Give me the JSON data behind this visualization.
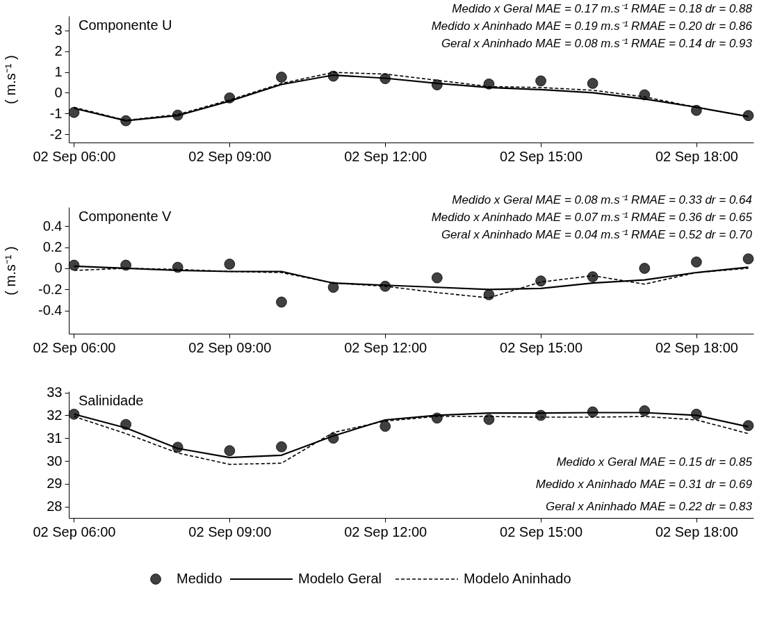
{
  "chart_data": [
    {
      "type": "line",
      "title": "Componente U",
      "ylabel": "( m.s⁻¹ )",
      "categories": [
        "02 Sep 06:00",
        null,
        null,
        "02 Sep 09:00",
        null,
        null,
        "02 Sep 12:00",
        null,
        null,
        "02 Sep 15:00",
        null,
        null,
        "02 Sep 18:00",
        null
      ],
      "ylim": [
        -2.4,
        3.7
      ],
      "yticks": [
        -2,
        -1,
        0,
        1,
        2,
        3
      ],
      "grid": false,
      "legend": false,
      "annotations": [
        "Medido x Geral   MAE = 0.17 m.s⁻¹   RMAE = 0.18   dr = 0.88",
        "Medido x Aninhado   MAE = 0.19 m.s⁻¹   RMAE = 0.20   dr = 0.86",
        "Geral x Aninhado   MAE = 0.08 m.s⁻¹   RMAE = 0.14   dr = 0.93"
      ],
      "series": [
        {
          "type": "scatter",
          "marker": "circle",
          "color": "#404040",
          "values": [
            -0.95,
            -1.35,
            -1.08,
            -0.25,
            0.75,
            0.8,
            0.68,
            0.38,
            0.42,
            0.57,
            0.45,
            -0.1,
            -0.85,
            -1.1
          ]
        },
        {
          "color": "#000000",
          "line_style": "solid",
          "values": [
            -0.75,
            -1.35,
            -1.1,
            -0.4,
            0.4,
            0.85,
            0.7,
            0.45,
            0.25,
            0.15,
            0.0,
            -0.3,
            -0.7,
            -1.15
          ]
        },
        {
          "color": "#000000",
          "line_style": "dashed",
          "values": [
            -0.7,
            -1.33,
            -1.05,
            -0.35,
            0.45,
            0.98,
            0.9,
            0.6,
            0.3,
            0.25,
            0.12,
            -0.2,
            -0.7,
            -1.15
          ]
        }
      ]
    },
    {
      "type": "line",
      "title": "Componente V",
      "ylabel": "( m.s⁻¹ )",
      "categories": [
        "02 Sep 06:00",
        null,
        null,
        "02 Sep 09:00",
        null,
        null,
        "02 Sep 12:00",
        null,
        null,
        "02 Sep 15:00",
        null,
        null,
        "02 Sep 18:00",
        null
      ],
      "ylim": [
        -0.62,
        0.58
      ],
      "yticks": [
        -0.4,
        -0.2,
        0,
        0.2,
        0.4
      ],
      "grid": false,
      "legend": false,
      "annotations": [
        "Medido x Geral   MAE = 0.08 m.s⁻¹   RMAE = 0.33   dr = 0.64",
        "Medido x Aninhado   MAE = 0.07 m.s⁻¹   RMAE = 0.36   dr = 0.65",
        "Geral x Aninhado   MAE = 0.04 m.s⁻¹   RMAE = 0.52   dr = 0.70"
      ],
      "series": [
        {
          "type": "scatter",
          "marker": "circle",
          "color": "#404040",
          "values": [
            0.03,
            0.03,
            0.01,
            0.04,
            -0.32,
            -0.18,
            -0.17,
            -0.09,
            -0.25,
            -0.12,
            -0.08,
            0.0,
            0.06,
            0.09
          ]
        },
        {
          "color": "#000000",
          "line_style": "solid",
          "values": [
            0.02,
            0.0,
            -0.02,
            -0.03,
            -0.03,
            -0.14,
            -0.16,
            -0.18,
            -0.2,
            -0.19,
            -0.14,
            -0.11,
            -0.04,
            0.01
          ]
        },
        {
          "color": "#000000",
          "line_style": "dashed",
          "values": [
            -0.02,
            0.0,
            -0.01,
            -0.03,
            -0.04,
            -0.14,
            -0.17,
            -0.23,
            -0.28,
            -0.13,
            -0.07,
            -0.15,
            -0.04,
            0.0
          ]
        }
      ]
    },
    {
      "type": "line",
      "title": "Salinidade",
      "categories": [
        "02 Sep 06:00",
        null,
        null,
        "02 Sep 09:00",
        null,
        null,
        "02 Sep 12:00",
        null,
        null,
        "02 Sep 15:00",
        null,
        null,
        "02 Sep 18:00",
        null
      ],
      "ylim": [
        27.5,
        33.05
      ],
      "yticks": [
        28,
        29,
        30,
        31,
        32,
        33
      ],
      "grid": false,
      "legend": "bottom",
      "annotations": [
        "Medido x Geral   MAE = 0.15   dr = 0.85",
        "Medido x Aninhado   MAE = 0.31   dr = 0.69",
        "Geral x Aninhado   MAE = 0.22   dr = 0.83"
      ],
      "series": [
        {
          "name": "Medido",
          "type": "scatter",
          "marker": "circle",
          "color": "#404040",
          "values": [
            32.05,
            31.6,
            30.6,
            30.45,
            30.62,
            31.0,
            31.52,
            31.88,
            31.82,
            32.0,
            32.15,
            32.2,
            32.05,
            31.55
          ]
        },
        {
          "name": "Modelo Geral",
          "color": "#000000",
          "line_style": "solid",
          "values": [
            32.05,
            31.45,
            30.55,
            30.15,
            30.25,
            31.1,
            31.8,
            32.0,
            32.1,
            32.1,
            32.12,
            32.12,
            32.0,
            31.5
          ]
        },
        {
          "name": "Modelo Aninhado",
          "color": "#000000",
          "line_style": "dashed",
          "values": [
            31.95,
            31.2,
            30.35,
            29.85,
            29.9,
            31.25,
            31.75,
            31.95,
            31.95,
            31.92,
            31.92,
            31.95,
            31.8,
            31.2
          ]
        }
      ]
    }
  ]
}
